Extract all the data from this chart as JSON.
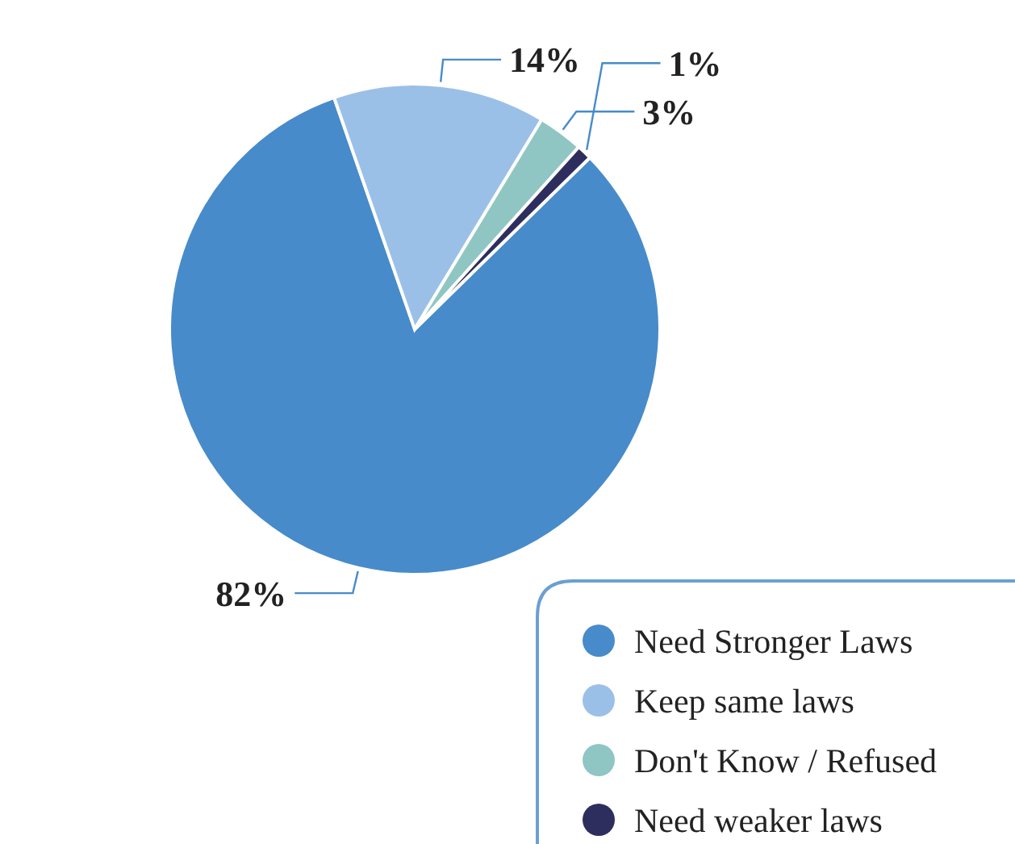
{
  "chart_data": {
    "type": "pie",
    "categories": [
      "Need Stronger Laws",
      "Keep same laws",
      "Don't Know / Refused",
      "Need weaker laws"
    ],
    "values": [
      82,
      14,
      3,
      1
    ],
    "colors": [
      "#478bca",
      "#9bc0e8",
      "#8fc6c3",
      "#2e2e5e"
    ],
    "value_labels": [
      "82%",
      "14%",
      "3%",
      "1%"
    ],
    "legend": "bottom right"
  }
}
